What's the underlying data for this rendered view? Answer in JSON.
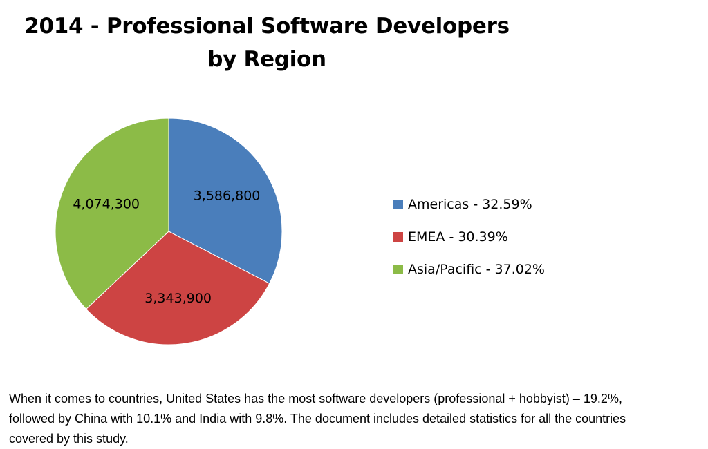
{
  "chart_data": {
    "type": "pie",
    "title": "2014 - Professional Software Developers by Region",
    "title_lines": [
      "2014 - Professional Software Developers",
      "by Region"
    ],
    "slices": [
      {
        "name": "Americas",
        "value": 3586800,
        "value_label": "3,586,800",
        "legend_label": "Americas - 32.59%",
        "color": "#4A7EBB"
      },
      {
        "name": "EMEA",
        "value": 3343900,
        "value_label": "3,343,900",
        "legend_label": "EMEA - 30.39%",
        "color": "#CD4443"
      },
      {
        "name": "Asia/Pacific",
        "value": 4074300,
        "value_label": "4,074,300",
        "legend_label": "Asia/Pacific - 37.02%",
        "color": "#8CBB47"
      }
    ],
    "legend_position": "right"
  },
  "caption": "When it comes to countries, United States has the most software developers (professional + hobbyist) – 19.2%, followed by China with 10.1% and India with 9.8%. The document includes detailed statistics for all the countries covered by this study."
}
